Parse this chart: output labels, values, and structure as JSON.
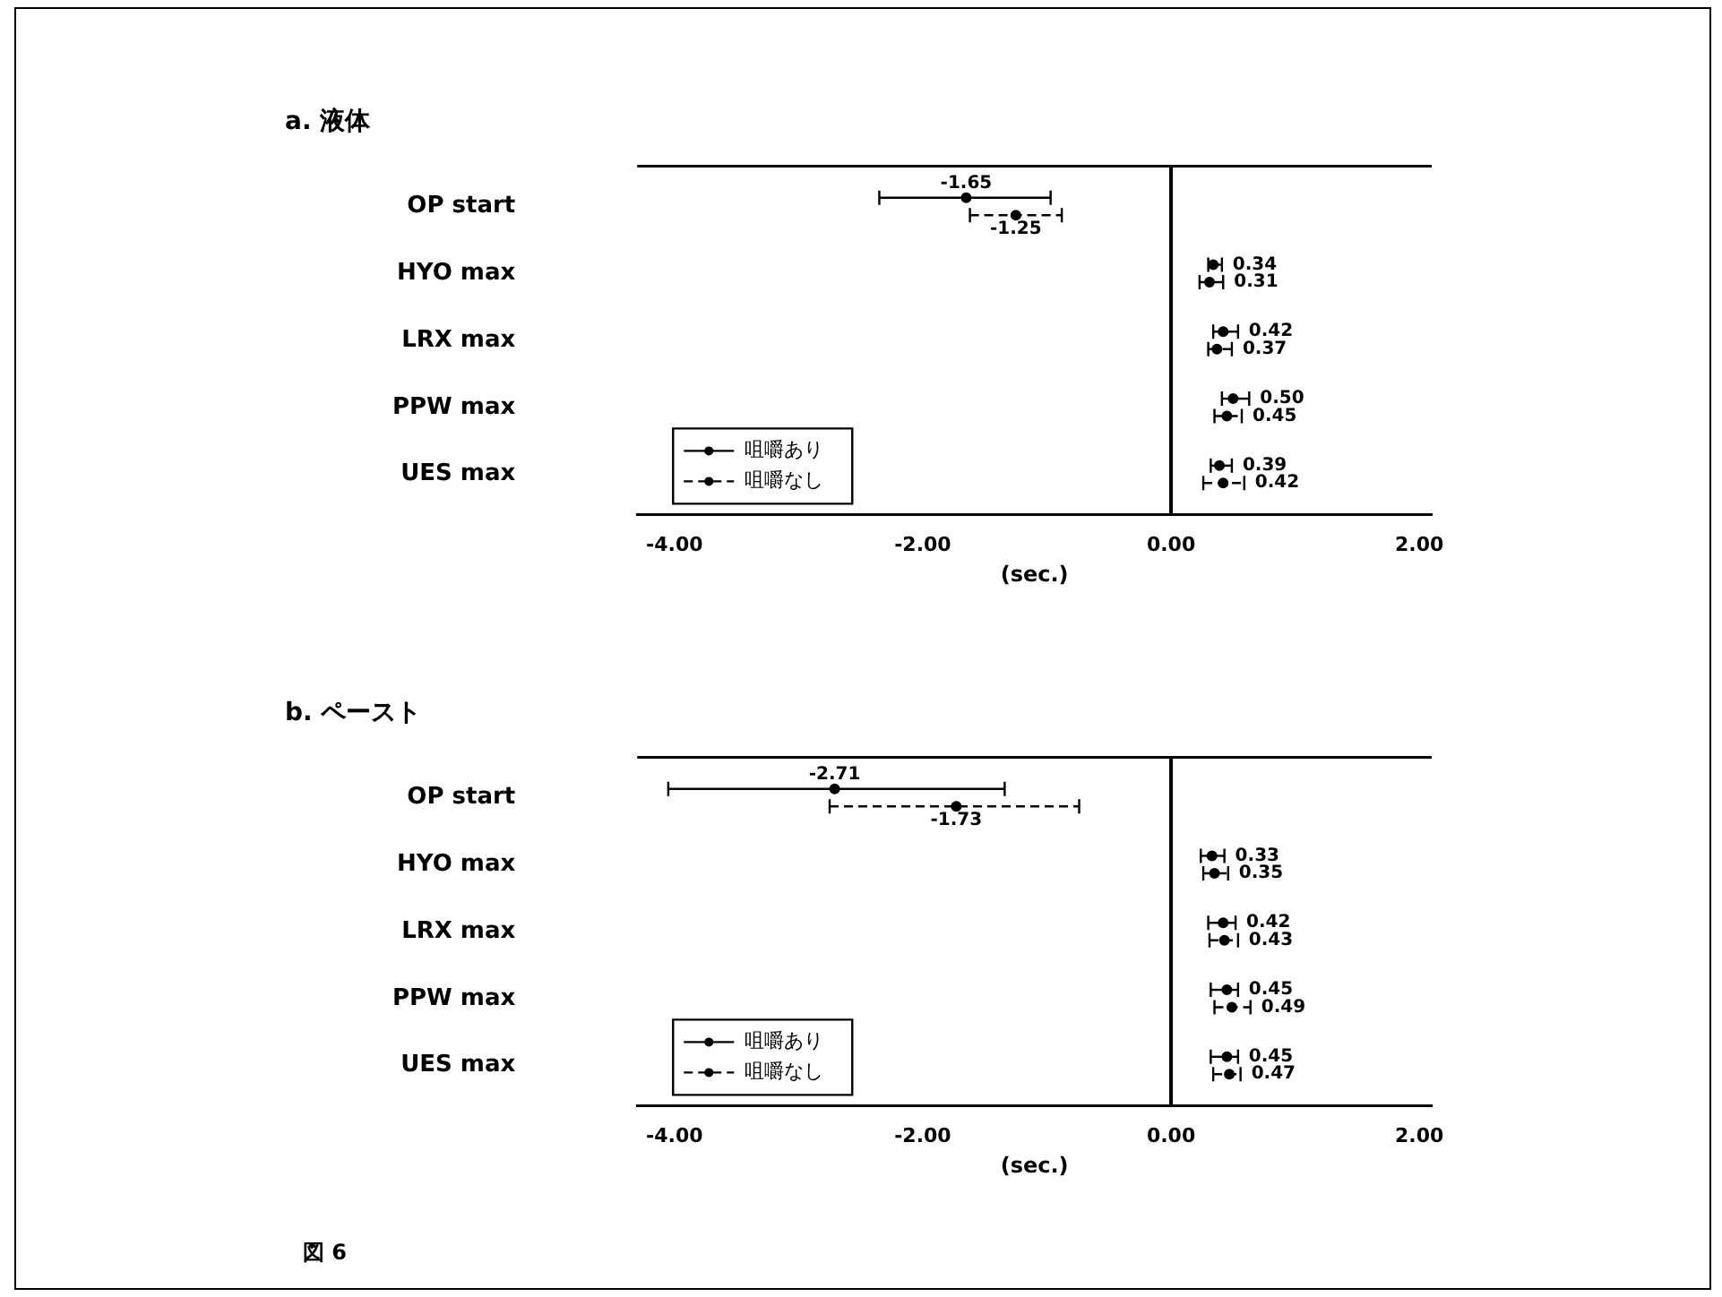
{
  "chart_data": [
    {
      "type": "scatter",
      "orientation": "horizontal",
      "title": "a. 液体",
      "xlabel": "(sec.)",
      "categories": [
        "OP start",
        "HYO max",
        "LRX max",
        "PPW max",
        "UES max"
      ],
      "series": [
        {
          "name": "咀嚼あり",
          "color": "#000000",
          "line_style": "solid",
          "values": [
            -1.65,
            0.34,
            0.42,
            0.5,
            0.39
          ],
          "errors": [
            [
              -2.35,
              -0.97
            ],
            [
              0.3,
              0.41
            ],
            [
              0.34,
              0.54
            ],
            [
              0.41,
              0.63
            ],
            [
              0.32,
              0.49
            ]
          ],
          "value_labels": [
            "-1.65",
            "0.34",
            "0.42",
            "0.50",
            "0.39"
          ]
        },
        {
          "name": "咀嚼なし",
          "color": "#000000",
          "line_style": "dashed",
          "values": [
            -1.25,
            0.31,
            0.37,
            0.45,
            0.42
          ],
          "errors": [
            [
              -1.62,
              -0.88
            ],
            [
              0.23,
              0.42
            ],
            [
              0.3,
              0.49
            ],
            [
              0.35,
              0.57
            ],
            [
              0.26,
              0.59
            ]
          ],
          "value_labels": [
            "-1.25",
            "0.31",
            "0.37",
            "0.45",
            "0.42"
          ]
        }
      ],
      "xlim": [
        -4.3,
        2.1
      ],
      "xticks": [
        {
          "value": -4,
          "label": "-4.00"
        },
        {
          "value": -2,
          "label": "-2.00"
        },
        {
          "value": 0,
          "label": "0.00"
        },
        {
          "value": 2,
          "label": "2.00"
        }
      ],
      "ref_lines": [
        {
          "axis": "x",
          "value": 0
        }
      ],
      "marker": "circle",
      "legend": "bottom left",
      "grid": false
    },
    {
      "type": "scatter",
      "orientation": "horizontal",
      "title": "b. ペースト",
      "xlabel": "(sec.)",
      "categories": [
        "OP start",
        "HYO max",
        "LRX max",
        "PPW max",
        "UES max"
      ],
      "series": [
        {
          "name": "咀嚼あり",
          "color": "#000000",
          "line_style": "solid",
          "values": [
            -2.71,
            0.33,
            0.42,
            0.45,
            0.45
          ],
          "errors": [
            [
              -4.05,
              -1.34
            ],
            [
              0.24,
              0.43
            ],
            [
              0.3,
              0.52
            ],
            [
              0.32,
              0.54
            ],
            [
              0.32,
              0.54
            ]
          ],
          "value_labels": [
            "-2.71",
            "0.33",
            "0.42",
            "0.45",
            "0.45"
          ]
        },
        {
          "name": "咀嚼なし",
          "color": "#000000",
          "line_style": "dashed",
          "values": [
            -1.73,
            0.35,
            0.43,
            0.49,
            0.47
          ],
          "errors": [
            [
              -2.75,
              -0.74
            ],
            [
              0.26,
              0.46
            ],
            [
              0.31,
              0.54
            ],
            [
              0.35,
              0.64
            ],
            [
              0.34,
              0.56
            ]
          ],
          "value_labels": [
            "-1.73",
            "0.35",
            "0.43",
            "0.49",
            "0.47"
          ]
        }
      ],
      "xlim": [
        -4.3,
        2.1
      ],
      "xticks": [
        {
          "value": -4,
          "label": "-4.00"
        },
        {
          "value": -2,
          "label": "-2.00"
        },
        {
          "value": 0,
          "label": "0.00"
        },
        {
          "value": 2,
          "label": "2.00"
        }
      ],
      "ref_lines": [
        {
          "axis": "x",
          "value": 0
        }
      ],
      "marker": "circle",
      "legend": "bottom left",
      "grid": false,
      "annotations": [
        "図 6"
      ]
    }
  ]
}
